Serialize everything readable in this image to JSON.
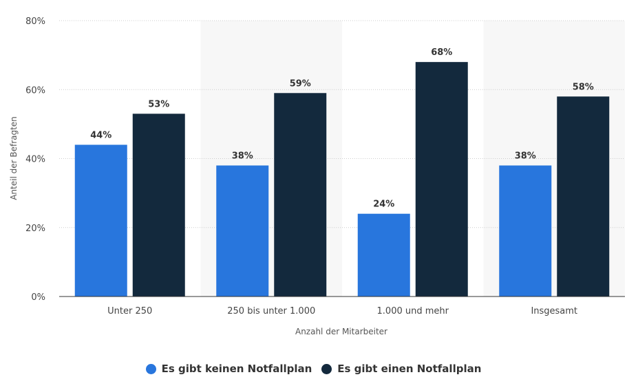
{
  "chart_data": {
    "type": "bar",
    "title": "",
    "xlabel": "Anzahl der Mitarbeiter",
    "ylabel": "Anteil der Befragten",
    "ylim": [
      0,
      80
    ],
    "yticks": [
      0,
      20,
      40,
      60,
      80
    ],
    "ytick_labels": [
      "0%",
      "20%",
      "40%",
      "60%",
      "80%"
    ],
    "categories": [
      "Unter 250",
      "250 bis unter 1.000",
      "1.000 und mehr",
      "Insgesamt"
    ],
    "series": [
      {
        "name": "Es gibt keinen Notfallplan",
        "color": "#2876dd",
        "values": [
          44,
          38,
          24,
          38
        ],
        "labels": [
          "44%",
          "38%",
          "24%",
          "38%"
        ]
      },
      {
        "name": "Es gibt einen Notfallplan",
        "color": "#13293d",
        "values": [
          53,
          59,
          68,
          58
        ],
        "labels": [
          "53%",
          "59%",
          "68%",
          "58%"
        ]
      }
    ],
    "grid": true,
    "legend_position": "bottom-center",
    "alternate_band_color": "#f7f7f7",
    "gridline_color": "#cccccc",
    "axis_color": "#333333"
  }
}
